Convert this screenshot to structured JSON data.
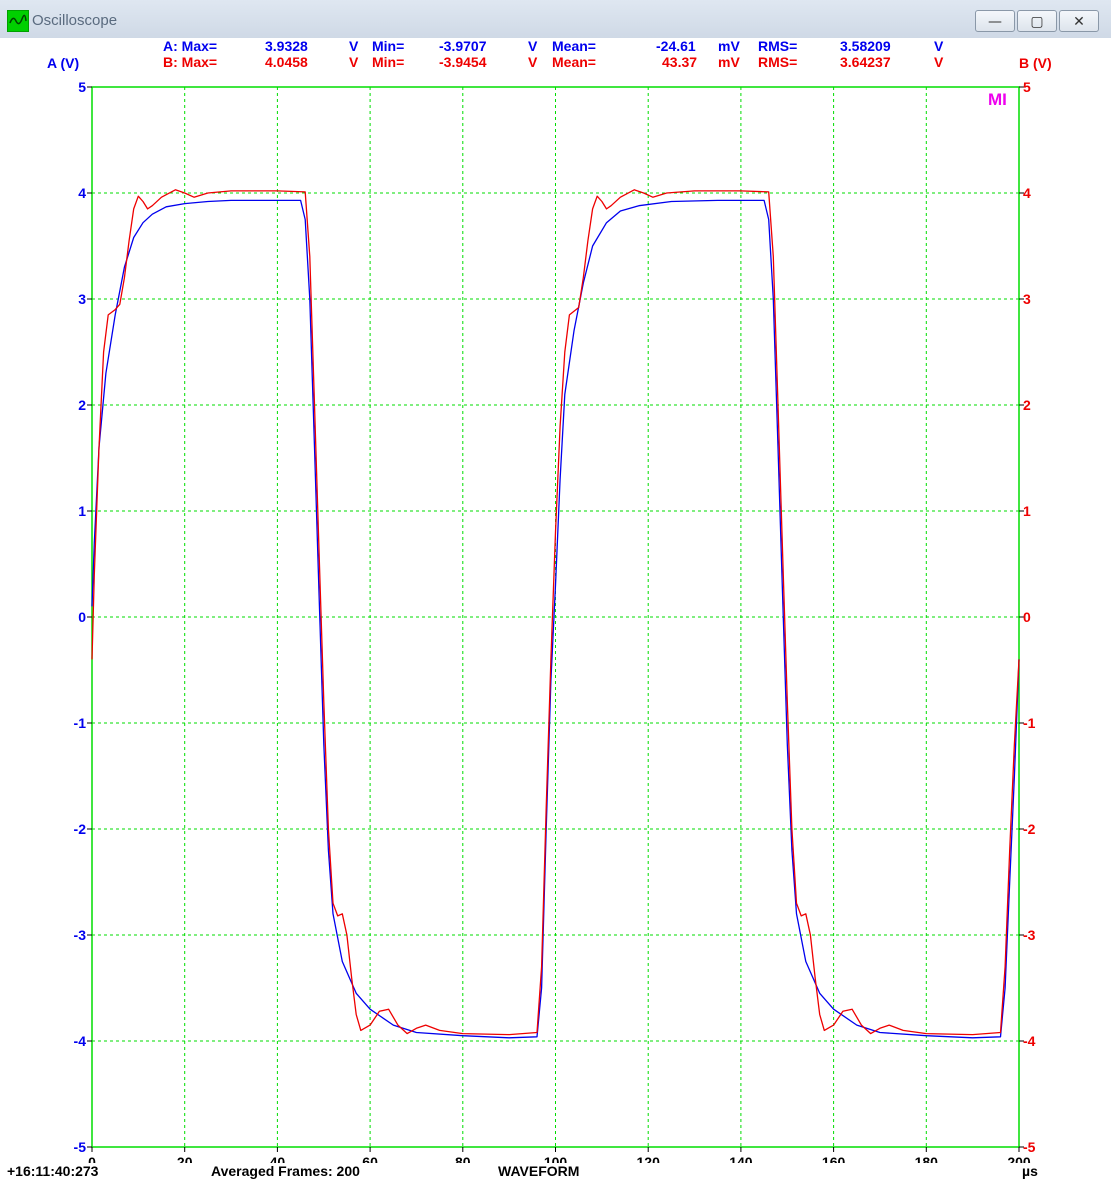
{
  "window": {
    "title": "Oscilloscope",
    "buttons": {
      "minimize": "—",
      "maximize": "▢",
      "close": "✕"
    }
  },
  "stats": {
    "a": {
      "prefix": "A: Max=",
      "max": "3.9328",
      "max_unit": "V",
      "min_label": "Min=",
      "min": "-3.9707",
      "min_unit": "V",
      "mean_label": "Mean=",
      "mean": "-24.61",
      "mean_unit": "mV",
      "rms_label": "RMS=",
      "rms": "3.58209",
      "rms_unit": "V"
    },
    "b": {
      "prefix": "B: Max=",
      "max": "4.0458",
      "max_unit": "V",
      "min_label": "Min=",
      "min": "-3.9454",
      "min_unit": "V",
      "mean_label": "Mean=",
      "mean": "43.37",
      "mean_unit": "mV",
      "rms_label": "RMS=",
      "rms": "3.64237",
      "rms_unit": "V"
    }
  },
  "marker": "MI",
  "footer": {
    "timestamp": "+16:11:40:273",
    "frames": "Averaged Frames: 200",
    "mode": "WAVEFORM"
  },
  "colors": {
    "channel_a": "#0000ee",
    "channel_b": "#ee0000",
    "grid": "#00dd00",
    "marker": "#ee00ee"
  },
  "chart_data": {
    "type": "line",
    "xlabel": "µs",
    "ylabel_left": "A (V)",
    "ylabel_right": "B (V)",
    "xlim": [
      0,
      200
    ],
    "ylim": [
      -5,
      5
    ],
    "x_ticks": [
      0,
      20,
      40,
      60,
      80,
      100,
      120,
      140,
      160,
      180,
      200
    ],
    "y_ticks": [
      5,
      4,
      3,
      2,
      1,
      0,
      -1,
      -2,
      -3,
      -4,
      -5
    ],
    "grid": true,
    "series": [
      {
        "name": "A (V)",
        "axis": "left",
        "color": "#0000ee",
        "points": [
          [
            0,
            0.1
          ],
          [
            0.5,
            0.7
          ],
          [
            1.5,
            1.6
          ],
          [
            3,
            2.3
          ],
          [
            5,
            2.85
          ],
          [
            7,
            3.3
          ],
          [
            9,
            3.58
          ],
          [
            11,
            3.72
          ],
          [
            13,
            3.8
          ],
          [
            16,
            3.87
          ],
          [
            20,
            3.9
          ],
          [
            25,
            3.92
          ],
          [
            30,
            3.93
          ],
          [
            40,
            3.93
          ],
          [
            45,
            3.93
          ],
          [
            46,
            3.75
          ],
          [
            47,
            3.0
          ],
          [
            48,
            1.6
          ],
          [
            49,
            0.2
          ],
          [
            50,
            -1.2
          ],
          [
            51,
            -2.2
          ],
          [
            52,
            -2.8
          ],
          [
            54,
            -3.25
          ],
          [
            57,
            -3.55
          ],
          [
            60,
            -3.7
          ],
          [
            65,
            -3.85
          ],
          [
            70,
            -3.92
          ],
          [
            80,
            -3.95
          ],
          [
            90,
            -3.97
          ],
          [
            96,
            -3.96
          ],
          [
            97,
            -3.5
          ],
          [
            98,
            -2.0
          ],
          [
            99,
            -0.6
          ],
          [
            100,
            0.3
          ],
          [
            101,
            1.3
          ],
          [
            102,
            2.1
          ],
          [
            104,
            2.7
          ],
          [
            106,
            3.15
          ],
          [
            108,
            3.5
          ],
          [
            111,
            3.72
          ],
          [
            114,
            3.83
          ],
          [
            118,
            3.88
          ],
          [
            125,
            3.92
          ],
          [
            135,
            3.93
          ],
          [
            145,
            3.93
          ],
          [
            146,
            3.75
          ],
          [
            147,
            3.0
          ],
          [
            148,
            1.6
          ],
          [
            149,
            0.2
          ],
          [
            150,
            -1.2
          ],
          [
            151,
            -2.2
          ],
          [
            152,
            -2.8
          ],
          [
            154,
            -3.25
          ],
          [
            157,
            -3.55
          ],
          [
            160,
            -3.7
          ],
          [
            165,
            -3.85
          ],
          [
            170,
            -3.92
          ],
          [
            180,
            -3.95
          ],
          [
            190,
            -3.97
          ],
          [
            196,
            -3.96
          ],
          [
            197,
            -3.5
          ],
          [
            198,
            -2.5
          ],
          [
            199,
            -1.5
          ],
          [
            200,
            -0.4
          ]
        ]
      },
      {
        "name": "B (V)",
        "axis": "right",
        "color": "#ee0000",
        "points": [
          [
            0,
            -0.4
          ],
          [
            0.5,
            0.4
          ],
          [
            1.5,
            1.6
          ],
          [
            2.5,
            2.5
          ],
          [
            3.5,
            2.85
          ],
          [
            5,
            2.9
          ],
          [
            6,
            2.95
          ],
          [
            7,
            3.2
          ],
          [
            8,
            3.55
          ],
          [
            9,
            3.85
          ],
          [
            10,
            3.97
          ],
          [
            11,
            3.92
          ],
          [
            12,
            3.85
          ],
          [
            13,
            3.88
          ],
          [
            15,
            3.96
          ],
          [
            18,
            4.03
          ],
          [
            20,
            4.0
          ],
          [
            22,
            3.96
          ],
          [
            25,
            4.0
          ],
          [
            30,
            4.02
          ],
          [
            40,
            4.02
          ],
          [
            46,
            4.01
          ],
          [
            47,
            3.4
          ],
          [
            48,
            2.0
          ],
          [
            49,
            0.6
          ],
          [
            50,
            -0.8
          ],
          [
            51,
            -2.0
          ],
          [
            52,
            -2.7
          ],
          [
            53,
            -2.82
          ],
          [
            54,
            -2.8
          ],
          [
            55,
            -3.0
          ],
          [
            56,
            -3.4
          ],
          [
            57,
            -3.75
          ],
          [
            58,
            -3.9
          ],
          [
            60,
            -3.85
          ],
          [
            62,
            -3.72
          ],
          [
            64,
            -3.7
          ],
          [
            66,
            -3.85
          ],
          [
            68,
            -3.93
          ],
          [
            70,
            -3.88
          ],
          [
            72,
            -3.85
          ],
          [
            75,
            -3.9
          ],
          [
            80,
            -3.93
          ],
          [
            90,
            -3.94
          ],
          [
            96,
            -3.92
          ],
          [
            97,
            -3.3
          ],
          [
            98,
            -1.8
          ],
          [
            99,
            -0.4
          ],
          [
            100,
            0.8
          ],
          [
            101,
            1.8
          ],
          [
            102,
            2.5
          ],
          [
            103,
            2.85
          ],
          [
            105,
            2.92
          ],
          [
            106,
            3.2
          ],
          [
            107,
            3.55
          ],
          [
            108,
            3.85
          ],
          [
            109,
            3.97
          ],
          [
            110,
            3.92
          ],
          [
            111,
            3.85
          ],
          [
            112,
            3.88
          ],
          [
            114,
            3.96
          ],
          [
            117,
            4.03
          ],
          [
            119,
            4.0
          ],
          [
            121,
            3.96
          ],
          [
            124,
            4.0
          ],
          [
            130,
            4.02
          ],
          [
            140,
            4.02
          ],
          [
            146,
            4.01
          ],
          [
            147,
            3.4
          ],
          [
            148,
            2.0
          ],
          [
            149,
            0.6
          ],
          [
            150,
            -0.8
          ],
          [
            151,
            -2.0
          ],
          [
            152,
            -2.7
          ],
          [
            153,
            -2.82
          ],
          [
            154,
            -2.8
          ],
          [
            155,
            -3.0
          ],
          [
            156,
            -3.4
          ],
          [
            157,
            -3.75
          ],
          [
            158,
            -3.9
          ],
          [
            160,
            -3.85
          ],
          [
            162,
            -3.72
          ],
          [
            164,
            -3.7
          ],
          [
            166,
            -3.85
          ],
          [
            168,
            -3.93
          ],
          [
            170,
            -3.88
          ],
          [
            172,
            -3.85
          ],
          [
            175,
            -3.9
          ],
          [
            180,
            -3.93
          ],
          [
            190,
            -3.94
          ],
          [
            196,
            -3.92
          ],
          [
            197,
            -3.3
          ],
          [
            198,
            -2.2
          ],
          [
            199,
            -1.2
          ],
          [
            200,
            -0.4
          ]
        ]
      }
    ]
  }
}
